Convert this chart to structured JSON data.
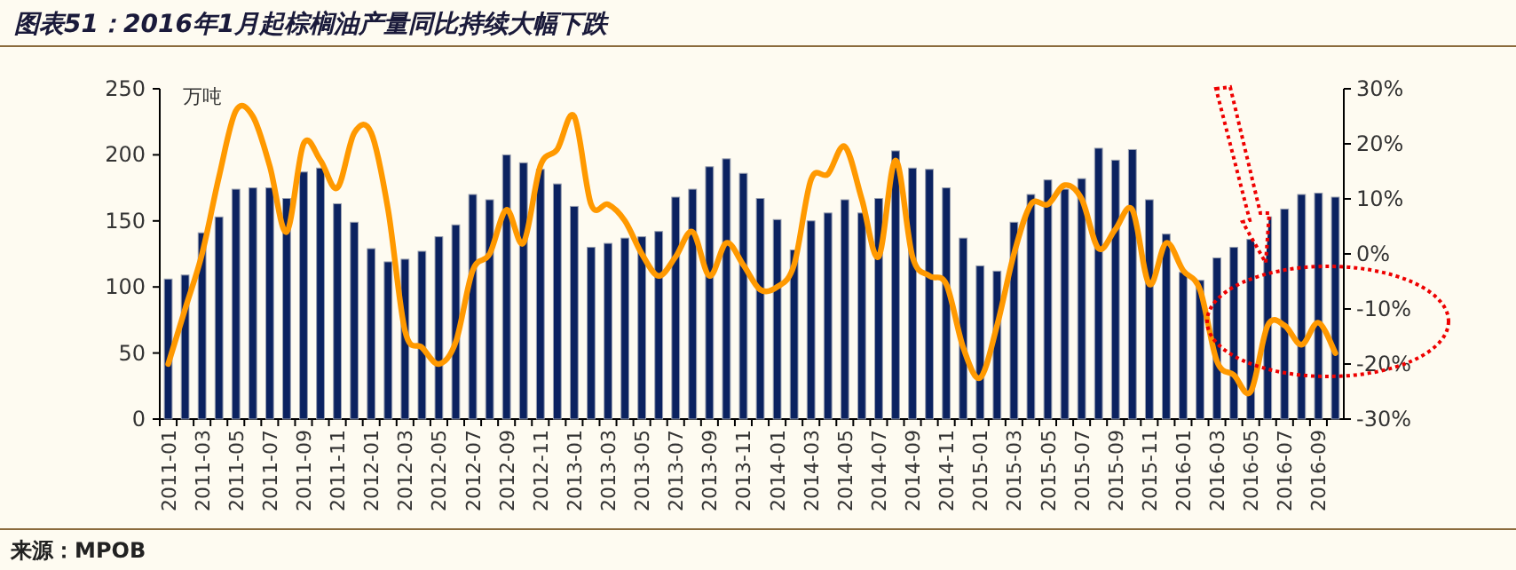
{
  "chart_data": {
    "type": "bar",
    "title": "图表51：2016年1月起棕榈油产量同比持续大幅下跌",
    "ylabel": "万吨",
    "annotations": [
      "来源：MPOB"
    ],
    "categories": [
      "2011-01",
      null,
      "2011-03",
      null,
      "2011-05",
      null,
      "2011-07",
      null,
      "2011-09",
      null,
      "2011-11",
      null,
      "2012-01",
      null,
      "2012-03",
      null,
      "2012-05",
      null,
      "2012-07",
      null,
      "2012-09",
      null,
      "2012-11",
      null,
      "2013-01",
      null,
      "2013-03",
      null,
      "2013-05",
      null,
      "2013-07",
      null,
      "2013-09",
      null,
      "2013-11",
      null,
      "2014-01",
      null,
      "2014-03",
      null,
      "2014-05",
      null,
      "2014-07",
      null,
      "2014-09",
      null,
      "2014-11",
      null,
      "2015-01",
      null,
      "2015-03",
      null,
      "2015-05",
      null,
      "2015-07",
      null,
      "2015-09",
      null,
      "2015-11",
      null,
      "2016-01",
      null,
      "2016-03",
      null,
      "2016-05",
      null,
      "2016-07",
      null,
      "2016-09",
      null
    ],
    "series": [
      {
        "color": "#0b2260",
        "values": [
          106,
          109,
          141,
          153,
          174,
          175,
          175,
          167,
          187,
          190,
          163,
          149,
          129,
          119,
          121,
          127,
          138,
          147,
          170,
          166,
          200,
          194,
          189,
          178,
          161,
          130,
          133,
          137,
          138,
          142,
          168,
          174,
          191,
          197,
          186,
          167,
          151,
          128,
          150,
          156,
          166,
          156,
          167,
          203,
          190,
          189,
          175,
          137,
          116,
          112,
          149,
          170,
          181,
          174,
          182,
          205,
          196,
          204,
          166,
          140,
          111,
          105,
          122,
          130,
          136,
          153,
          159,
          170,
          171,
          168
        ]
      },
      {
        "type": "line",
        "axis": "y2",
        "color": "#ff9900",
        "values": [
          -20,
          -10,
          0,
          14,
          26,
          25,
          16,
          4,
          20,
          17,
          12,
          22,
          22,
          8,
          -14,
          -17,
          -20,
          -16,
          -3,
          0,
          8,
          2,
          16,
          19,
          25,
          9,
          9,
          6,
          0,
          -4,
          -0.5,
          4,
          -4,
          2,
          -2,
          -6.5,
          -6,
          -2,
          13.5,
          14.5,
          19.5,
          10,
          -0.5,
          17,
          -0.5,
          -4,
          -5.5,
          -17,
          -22.5,
          -13,
          0,
          9,
          9,
          12.5,
          10,
          1,
          4.5,
          8,
          -5.5,
          2,
          -3,
          -6.5,
          -19.5,
          -22,
          -25,
          -13,
          -13,
          -16.5,
          -12.5,
          -18
        ]
      }
    ],
    "ylim": [
      0,
      250
    ],
    "yticks": [
      0,
      50,
      100,
      150,
      200,
      250
    ],
    "y2lim": [
      -30,
      30
    ],
    "y2ticks": [
      {
        "value": -30,
        "label": "-30%"
      },
      {
        "value": -20,
        "label": "-20%"
      },
      {
        "value": -10,
        "label": "-10%"
      },
      {
        "value": 0,
        "label": "0%"
      },
      {
        "value": 10,
        "label": "10%"
      },
      {
        "value": 20,
        "label": "20%"
      },
      {
        "value": 30,
        "label": "30%"
      }
    ]
  }
}
